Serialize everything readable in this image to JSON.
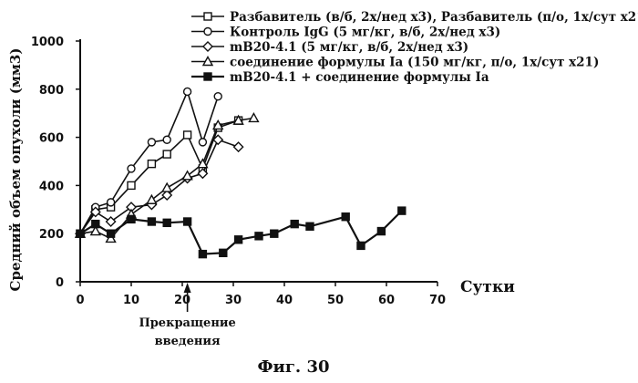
{
  "chart_data": {
    "type": "line",
    "xlabel": "Сутки",
    "ylabel": "Средний объем опухоли (мм3)",
    "xlim": [
      0,
      70
    ],
    "ylim": [
      0,
      1000
    ],
    "xticks": [
      0,
      10,
      20,
      30,
      40,
      50,
      60,
      70
    ],
    "yticks": [
      0,
      200,
      400,
      600,
      800,
      1000
    ],
    "grid": false,
    "legend_position": "top-right",
    "annotation": {
      "x": 21,
      "line1": "Прекращение",
      "line2": "введения"
    },
    "caption": "Фиг. 30",
    "series": [
      {
        "name": "Разбавитель (в/б, 2х/нед х3), Разбавитель (п/о, 1х/сут х21)",
        "marker": "square-open",
        "x": [
          0,
          3,
          6,
          10,
          14,
          17,
          21,
          24,
          27,
          31
        ],
        "y": [
          200,
          300,
          310,
          400,
          490,
          530,
          610,
          470,
          640,
          670
        ]
      },
      {
        "name": "Контроль IgG (5 мг/кг, в/б, 2х/нед х3)",
        "marker": "circle-open",
        "x": [
          0,
          3,
          6,
          10,
          14,
          17,
          21,
          24,
          27
        ],
        "y": [
          200,
          310,
          330,
          470,
          580,
          590,
          790,
          580,
          770
        ]
      },
      {
        "name": "mB20-4.1 (5 мг/кг, в/б, 2х/нед х3)",
        "marker": "diamond-open",
        "x": [
          0,
          3,
          6,
          10,
          14,
          17,
          21,
          24,
          27,
          31
        ],
        "y": [
          200,
          290,
          250,
          310,
          320,
          360,
          430,
          450,
          590,
          560
        ]
      },
      {
        "name": "соединение формулы Ia (150 мг/кг, п/о, 1х/сут х21)",
        "marker": "triangle-open",
        "x": [
          0,
          3,
          6,
          10,
          14,
          17,
          21,
          24,
          27,
          31,
          34
        ],
        "y": [
          200,
          210,
          180,
          280,
          340,
          390,
          440,
          490,
          650,
          670,
          680
        ]
      },
      {
        "name": "mB20-4.1 + соединение формулы Ia",
        "marker": "square-filled",
        "x": [
          0,
          3,
          6,
          10,
          14,
          17,
          21,
          24,
          28,
          31,
          35,
          38,
          42,
          45,
          52,
          55,
          59,
          63
        ],
        "y": [
          200,
          240,
          200,
          260,
          250,
          245,
          250,
          115,
          120,
          175,
          190,
          200,
          240,
          230,
          270,
          150,
          210,
          295
        ]
      }
    ]
  }
}
